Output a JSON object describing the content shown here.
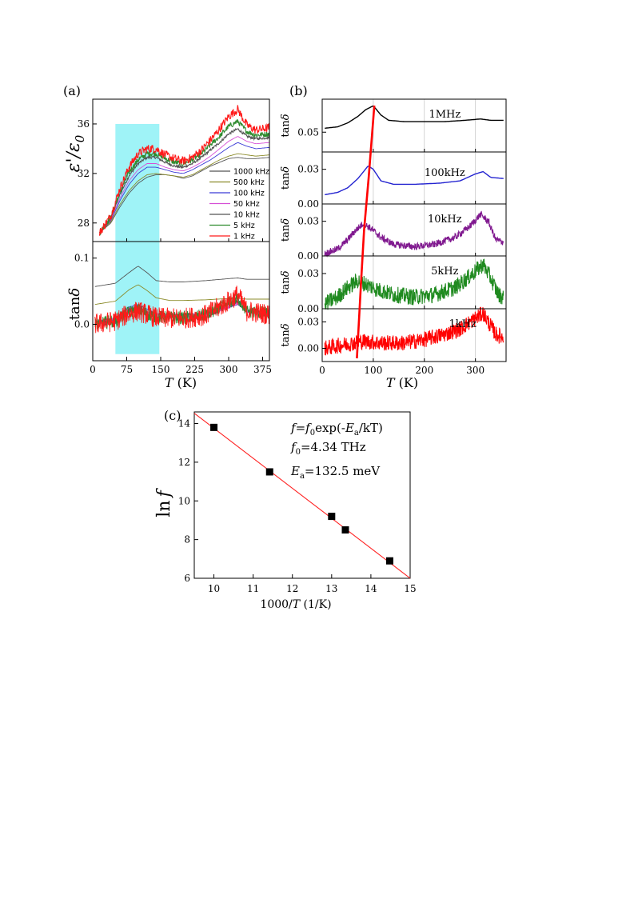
{
  "panel_labels": {
    "a": "(a)",
    "b": "(b)",
    "c": "(c)"
  },
  "colors": {
    "1000 kHz": "#555555",
    "500 kHz": "#8b8b2a",
    "100 kHz": "#3b3bd6",
    "50 kHz": "#d64fd6",
    "10 kHz": "#555555",
    "5 kHz": "#2e8b2e",
    "1 kHz": "#ff1a1a",
    "highlight": "#9ff3f7",
    "fit_line": "#ff2222"
  },
  "chart_data": [
    {
      "id": "a_top",
      "type": "line",
      "xlabel": "T (K)",
      "ylabel": "ε'/ε0",
      "xlim": [
        0,
        390
      ],
      "ylim": [
        26.5,
        38
      ],
      "xticks": [
        0,
        75,
        150,
        225,
        300,
        375
      ],
      "yticks": [
        28,
        32,
        36
      ],
      "highlight_band": [
        50,
        147
      ],
      "legend_position": "right",
      "series": [
        {
          "name": "1000 kHz",
          "x": [
            15,
            40,
            60,
            80,
            100,
            120,
            140,
            160,
            180,
            200,
            220,
            240,
            260,
            280,
            300,
            320,
            340,
            360,
            390
          ],
          "y": [
            27.2,
            28.0,
            29.3,
            30.4,
            31.2,
            31.7,
            31.9,
            31.9,
            31.8,
            31.6,
            31.8,
            32.2,
            32.6,
            32.9,
            33.2,
            33.3,
            33.2,
            33.2,
            33.3
          ]
        },
        {
          "name": "500 kHz",
          "x": [
            15,
            40,
            60,
            80,
            100,
            120,
            140,
            160,
            180,
            200,
            220,
            240,
            260,
            280,
            300,
            320,
            340,
            360,
            390
          ],
          "y": [
            27.2,
            28.1,
            29.5,
            30.6,
            31.4,
            31.9,
            32.0,
            31.9,
            31.8,
            31.7,
            31.9,
            32.3,
            32.7,
            33.1,
            33.4,
            33.6,
            33.5,
            33.4,
            33.5
          ]
        },
        {
          "name": "100 kHz",
          "x": [
            15,
            40,
            60,
            80,
            100,
            120,
            140,
            160,
            180,
            200,
            220,
            240,
            260,
            280,
            300,
            320,
            340,
            360,
            390
          ],
          "y": [
            27.2,
            28.2,
            29.8,
            31.1,
            32.0,
            32.5,
            32.5,
            32.3,
            32.1,
            32.0,
            32.3,
            32.7,
            33.1,
            33.6,
            34.1,
            34.5,
            34.2,
            34.0,
            34.1
          ]
        },
        {
          "name": "50 kHz",
          "x": [
            15,
            40,
            60,
            80,
            100,
            120,
            140,
            160,
            180,
            200,
            220,
            240,
            260,
            280,
            300,
            320,
            340,
            360,
            390
          ],
          "y": [
            27.2,
            28.3,
            30.0,
            31.4,
            32.3,
            32.8,
            32.8,
            32.5,
            32.3,
            32.2,
            32.5,
            32.9,
            33.4,
            34.0,
            34.6,
            35.0,
            34.6,
            34.4,
            34.5
          ]
        },
        {
          "name": "10 kHz",
          "x": [
            15,
            40,
            60,
            80,
            100,
            120,
            140,
            160,
            180,
            200,
            220,
            240,
            260,
            280,
            300,
            320,
            340,
            360,
            390
          ],
          "y": [
            27.2,
            28.4,
            30.3,
            31.8,
            32.8,
            33.3,
            33.3,
            32.9,
            32.6,
            32.5,
            32.8,
            33.3,
            33.9,
            34.5,
            35.2,
            35.6,
            35.0,
            34.8,
            34.9
          ]
        },
        {
          "name": "5 kHz",
          "x": [
            15,
            40,
            60,
            80,
            100,
            120,
            140,
            160,
            180,
            200,
            220,
            240,
            260,
            280,
            300,
            320,
            340,
            360,
            390
          ],
          "y": [
            27.2,
            28.5,
            30.5,
            32.1,
            33.1,
            33.6,
            33.6,
            33.2,
            32.9,
            32.8,
            33.1,
            33.6,
            34.3,
            35.0,
            35.8,
            36.2,
            35.4,
            35.1,
            35.2
          ]
        },
        {
          "name": "1 kHz",
          "x": [
            15,
            40,
            60,
            80,
            100,
            120,
            140,
            160,
            180,
            200,
            220,
            240,
            260,
            280,
            300,
            320,
            340,
            360,
            390
          ],
          "y": [
            27.2,
            28.6,
            30.8,
            32.5,
            33.6,
            34.0,
            34.0,
            33.5,
            33.2,
            33.0,
            33.3,
            33.9,
            34.7,
            35.6,
            36.6,
            37.2,
            35.9,
            35.5,
            35.7
          ]
        }
      ]
    },
    {
      "id": "a_bottom",
      "type": "line",
      "xlabel": "T (K)",
      "ylabel": "tanδ",
      "xlim": [
        0,
        390
      ],
      "ylim": [
        -0.055,
        0.125
      ],
      "xticks": [
        0,
        75,
        150,
        225,
        300,
        375
      ],
      "yticks": [
        0.0,
        0.1
      ],
      "highlight_band": [
        50,
        147
      ],
      "series": [
        {
          "name": "1000 kHz",
          "x": [
            5,
            50,
            80,
            100,
            120,
            140,
            170,
            200,
            250,
            300,
            320,
            340,
            390
          ],
          "y": [
            0.057,
            0.062,
            0.078,
            0.088,
            0.078,
            0.066,
            0.064,
            0.064,
            0.066,
            0.069,
            0.07,
            0.068,
            0.068
          ]
        },
        {
          "name": "500 kHz",
          "x": [
            5,
            50,
            80,
            100,
            120,
            140,
            170,
            200,
            250,
            300,
            320,
            340,
            390
          ],
          "y": [
            0.03,
            0.035,
            0.052,
            0.06,
            0.051,
            0.04,
            0.036,
            0.036,
            0.037,
            0.039,
            0.04,
            0.038,
            0.038
          ]
        },
        {
          "name": "100 kHz",
          "x": [
            5,
            50,
            80,
            100,
            120,
            140,
            170,
            200,
            250,
            300,
            320,
            340,
            390
          ],
          "y": [
            0.004,
            0.01,
            0.026,
            0.03,
            0.023,
            0.016,
            0.015,
            0.015,
            0.017,
            0.025,
            0.03,
            0.02,
            0.018
          ]
        },
        {
          "name": "50 kHz",
          "x": [
            5,
            50,
            80,
            100,
            120,
            140,
            170,
            200,
            250,
            300,
            320,
            340,
            390
          ],
          "y": [
            0.002,
            0.008,
            0.022,
            0.026,
            0.02,
            0.014,
            0.013,
            0.013,
            0.015,
            0.026,
            0.033,
            0.02,
            0.017
          ]
        },
        {
          "name": "10 kHz",
          "x": [
            5,
            50,
            80,
            100,
            120,
            140,
            170,
            200,
            250,
            300,
            320,
            340,
            390
          ],
          "y": [
            0.0,
            0.006,
            0.02,
            0.024,
            0.018,
            0.012,
            0.011,
            0.011,
            0.014,
            0.03,
            0.038,
            0.02,
            0.016
          ]
        },
        {
          "name": "5 kHz",
          "x": [
            5,
            50,
            80,
            100,
            120,
            140,
            170,
            200,
            250,
            300,
            320,
            340,
            390
          ],
          "y": [
            0.0,
            0.006,
            0.018,
            0.022,
            0.016,
            0.011,
            0.01,
            0.01,
            0.014,
            0.032,
            0.04,
            0.02,
            0.016
          ]
        },
        {
          "name": "1 kHz",
          "x": [
            5,
            50,
            80,
            100,
            120,
            140,
            170,
            200,
            250,
            300,
            320,
            340,
            390
          ],
          "y": [
            0.0,
            0.005,
            0.016,
            0.02,
            0.015,
            0.01,
            0.009,
            0.009,
            0.014,
            0.035,
            0.045,
            0.02,
            0.015
          ]
        }
      ]
    },
    {
      "id": "b",
      "type": "line",
      "xlabel": "T (K)",
      "ylabel": "tanδ",
      "xlim": [
        0,
        360
      ],
      "xticks": [
        0,
        100,
        200,
        300
      ],
      "grid_x": [
        100,
        200,
        300
      ],
      "subplots": [
        {
          "label": "1MHz",
          "color": "#000000",
          "ylim": [
            0.035,
            0.075
          ],
          "yticks": [
            0.05
          ],
          "ytick_labels": [
            "0.05"
          ],
          "x": [
            5,
            30,
            50,
            70,
            85,
            100,
            115,
            130,
            160,
            200,
            240,
            280,
            310,
            330,
            355
          ],
          "y": [
            0.053,
            0.054,
            0.057,
            0.062,
            0.067,
            0.07,
            0.063,
            0.059,
            0.058,
            0.058,
            0.058,
            0.059,
            0.06,
            0.059,
            0.059
          ]
        },
        {
          "label": "100kHz",
          "color": "#2323d0",
          "ylim": [
            0.0,
            0.045
          ],
          "yticks": [
            0.0,
            0.03
          ],
          "ytick_labels": [
            "0.00",
            "0.03"
          ],
          "x": [
            5,
            30,
            50,
            70,
            90,
            100,
            115,
            140,
            180,
            230,
            270,
            300,
            315,
            330,
            355
          ],
          "y": [
            0.008,
            0.01,
            0.014,
            0.022,
            0.033,
            0.03,
            0.02,
            0.017,
            0.017,
            0.018,
            0.02,
            0.026,
            0.028,
            0.023,
            0.022
          ]
        },
        {
          "label": "10kHz",
          "color": "#80198f",
          "ylim": [
            0.0,
            0.045
          ],
          "yticks": [
            0.0,
            0.03
          ],
          "ytick_labels": [
            "0.00",
            "0.03"
          ],
          "noise": 0.003,
          "x": [
            5,
            30,
            50,
            65,
            80,
            95,
            115,
            140,
            180,
            220,
            260,
            290,
            310,
            325,
            340,
            355
          ],
          "y": [
            0.002,
            0.006,
            0.014,
            0.022,
            0.028,
            0.024,
            0.016,
            0.01,
            0.008,
            0.01,
            0.016,
            0.026,
            0.036,
            0.03,
            0.014,
            0.012
          ]
        },
        {
          "label": "5kHz",
          "color": "#1f8a1f",
          "ylim": [
            0.0,
            0.045
          ],
          "yticks": [
            0.0,
            0.03
          ],
          "ytick_labels": [
            "0.00",
            "0.03"
          ],
          "noise": 0.007,
          "x": [
            5,
            30,
            50,
            70,
            90,
            110,
            140,
            180,
            220,
            260,
            290,
            315,
            330,
            345,
            355
          ],
          "y": [
            0.004,
            0.01,
            0.018,
            0.024,
            0.02,
            0.016,
            0.012,
            0.01,
            0.012,
            0.018,
            0.028,
            0.038,
            0.026,
            0.012,
            0.01
          ]
        },
        {
          "label": "1kHz",
          "color": "#ff0000",
          "ylim": [
            -0.015,
            0.045
          ],
          "yticks": [
            0.0,
            0.03
          ],
          "ytick_labels": [
            "0.00",
            "0.03"
          ],
          "noise": 0.009,
          "x": [
            5,
            40,
            80,
            120,
            160,
            200,
            240,
            270,
            300,
            315,
            325,
            340,
            355
          ],
          "y": [
            0.0,
            0.004,
            0.008,
            0.006,
            0.006,
            0.01,
            0.016,
            0.022,
            0.034,
            0.04,
            0.03,
            0.016,
            0.012
          ]
        }
      ],
      "peak_trend": {
        "color": "#ff0000",
        "x": [
          102,
          91,
          82,
          76,
          68
        ],
        "panel_index": [
          0,
          1,
          2,
          3,
          4
        ]
      }
    },
    {
      "id": "c",
      "type": "scatter",
      "xlabel": "1000/T (1/K)",
      "ylabel": "ln f",
      "xlim": [
        9.5,
        15
      ],
      "ylim": [
        6,
        14.6
      ],
      "xticks": [
        10,
        11,
        12,
        13,
        14,
        15
      ],
      "yticks": [
        6,
        8,
        10,
        12,
        14
      ],
      "points": {
        "x": [
          10.0,
          11.42,
          13.0,
          13.35,
          14.48
        ],
        "y": [
          13.8,
          11.5,
          9.2,
          8.5,
          6.9
        ]
      },
      "fit_line": {
        "x": [
          9.5,
          15.0
        ],
        "y": [
          14.53,
          6.0
        ]
      },
      "annotations": {
        "eq": "f=f0exp(-Ea/kT)",
        "f0": "f0=4.34 THz",
        "Ea": "Ea=132.5 meV"
      }
    }
  ],
  "text": {
    "a_xlabel_italic": "T",
    "a_xlabel_unit": " (K)",
    "b_xlabel_italic": "T",
    "b_xlabel_unit": " (K)",
    "tan": "tan",
    "delta": "δ",
    "eps_prime": "ε'/ε",
    "eps_sub": "0",
    "c_xlabel_pre": "1000/",
    "c_xlabel_italic": "T",
    "c_xlabel_post": " (1/K)",
    "c_ylabel_ln": "ln",
    "c_ylabel_f": "f",
    "eq_f": "f",
    "eq_mid": "=",
    "eq_f2": "f",
    "eq_sub0": "0",
    "eq_rest1": "exp(-",
    "eq_E": "E",
    "eq_suba": "a",
    "eq_rest2": "/kT)",
    "f0_f": "f",
    "f0_sub": "0",
    "f0_val": "=4.34 THz",
    "Ea_E": "E",
    "Ea_sub": "a",
    "Ea_val": "=132.5 meV"
  },
  "legend": [
    "1000 kHz",
    "500 kHz",
    "100 kHz",
    "50 kHz",
    "10 kHz",
    "5 kHz",
    "1 kHz"
  ]
}
